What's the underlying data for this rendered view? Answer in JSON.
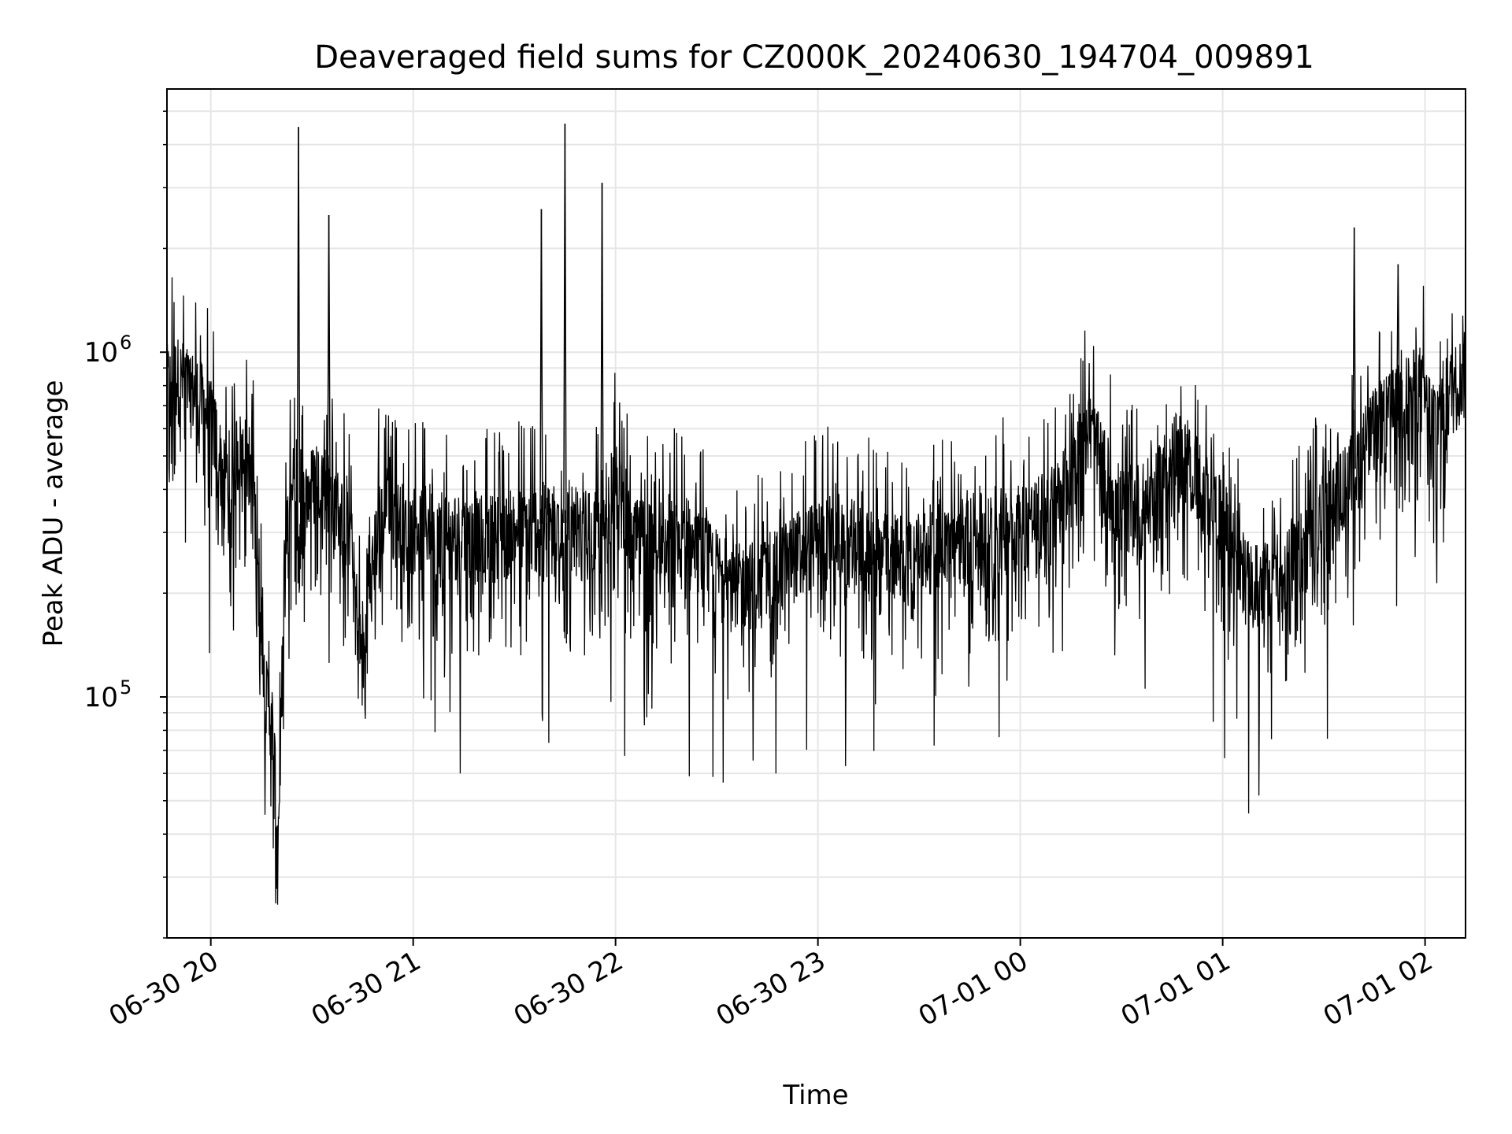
{
  "chart_data": {
    "type": "line",
    "title": "Deaveraged field sums for CZ000K_20240630_194704_009891",
    "xlabel": "Time",
    "ylabel": "Peak ADU - average",
    "xlim": [
      "2024-06-30 19:47",
      "2024-07-01 02:12"
    ],
    "yscale": "log",
    "ylim": [
      20000,
      5800000
    ],
    "grid": true,
    "line_color": "#000000",
    "grid_color": "#e6e6e6",
    "x_ticks": [
      {
        "time": "2024-06-30 20:00",
        "label": "06-30 20"
      },
      {
        "time": "2024-06-30 21:00",
        "label": "06-30 21"
      },
      {
        "time": "2024-06-30 22:00",
        "label": "06-30 22"
      },
      {
        "time": "2024-06-30 23:00",
        "label": "06-30 23"
      },
      {
        "time": "2024-07-01 00:00",
        "label": "07-01 00"
      },
      {
        "time": "2024-07-01 01:00",
        "label": "07-01 01"
      },
      {
        "time": "2024-07-01 02:00",
        "label": "07-01 02"
      }
    ],
    "y_ticks": [
      {
        "value": 100000,
        "base": "10",
        "exp": "5"
      },
      {
        "value": 1000000,
        "base": "10",
        "exp": "6"
      }
    ],
    "series": [
      {
        "times": [
          "2024-06-30 19:47",
          "2024-06-30 19:50",
          "2024-06-30 19:54",
          "2024-06-30 19:57",
          "2024-06-30 20:01",
          "2024-06-30 20:04",
          "2024-06-30 20:08",
          "2024-06-30 20:12",
          "2024-06-30 20:15",
          "2024-06-30 20:16",
          "2024-06-30 20:18",
          "2024-06-30 20:20",
          "2024-06-30 20:22",
          "2024-06-30 20:24",
          "2024-06-30 20:27",
          "2024-06-30 20:32",
          "2024-06-30 20:36",
          "2024-06-30 20:41",
          "2024-06-30 20:45",
          "2024-06-30 20:50",
          "2024-06-30 20:54",
          "2024-06-30 20:59",
          "2024-06-30 21:05",
          "2024-06-30 21:12",
          "2024-06-30 21:19",
          "2024-06-30 21:27",
          "2024-06-30 21:34",
          "2024-06-30 21:39",
          "2024-06-30 21:43",
          "2024-06-30 21:47",
          "2024-06-30 21:53",
          "2024-06-30 21:57",
          "2024-06-30 21:59",
          "2024-06-30 22:05",
          "2024-06-30 22:15",
          "2024-06-30 22:25",
          "2024-06-30 22:35",
          "2024-06-30 22:45",
          "2024-06-30 22:55",
          "2024-06-30 23:05",
          "2024-06-30 23:15",
          "2024-06-30 23:25",
          "2024-06-30 23:35",
          "2024-06-30 23:45",
          "2024-06-30 23:55",
          "2024-07-01 00:05",
          "2024-07-01 00:12",
          "2024-07-01 00:20",
          "2024-07-01 00:30",
          "2024-07-01 00:40",
          "2024-07-01 00:45",
          "2024-07-01 00:52",
          "2024-07-01 01:00",
          "2024-07-01 01:08",
          "2024-07-01 01:15",
          "2024-07-01 01:22",
          "2024-07-01 01:30",
          "2024-07-01 01:37",
          "2024-07-01 01:45",
          "2024-07-01 01:52",
          "2024-07-01 01:58",
          "2024-07-01 02:02",
          "2024-07-01 02:12"
        ],
        "values": [
          800000,
          850000,
          780000,
          720000,
          600000,
          420000,
          520000,
          480000,
          180000,
          100000,
          90000,
          40000,
          250000,
          400000,
          350000,
          450000,
          380000,
          300000,
          120000,
          350000,
          330000,
          310000,
          320000,
          300000,
          290000,
          300000,
          310000,
          320000,
          330000,
          310000,
          300000,
          290000,
          450000,
          280000,
          300000,
          260000,
          210000,
          220000,
          270000,
          300000,
          270000,
          250000,
          280000,
          290000,
          310000,
          330000,
          380000,
          600000,
          350000,
          380000,
          520000,
          450000,
          320000,
          210000,
          220000,
          250000,
          340000,
          420000,
          600000,
          700000,
          820000,
          650000,
          880000
        ],
        "spikes": [
          {
            "time": "2024-06-30 20:26",
            "value": 4500000
          },
          {
            "time": "2024-06-30 20:35",
            "value": 2500000
          },
          {
            "time": "2024-06-30 21:38",
            "value": 2600000
          },
          {
            "time": "2024-06-30 21:45",
            "value": 4600000
          },
          {
            "time": "2024-06-30 21:56",
            "value": 3100000
          },
          {
            "time": "2024-07-01 01:39",
            "value": 2300000
          },
          {
            "time": "2024-07-01 01:52",
            "value": 1800000
          }
        ]
      }
    ]
  }
}
